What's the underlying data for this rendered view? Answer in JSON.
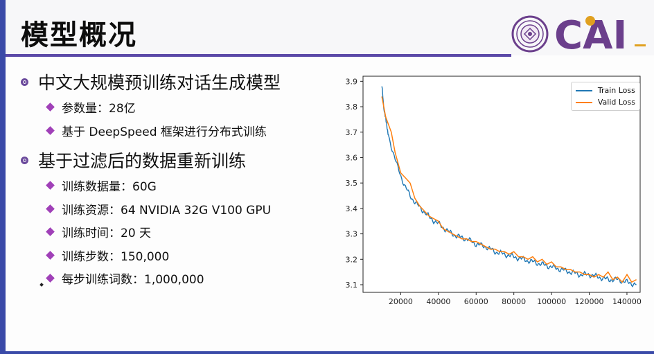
{
  "slide": {
    "title": "模型概况",
    "bullets": [
      {
        "text": "中文大规模预训练对话生成模型",
        "sub": [
          "参数量：28亿",
          "基于 DeepSpeed 框架进行分布式训练"
        ]
      },
      {
        "text": "基于过滤后的数据重新训练",
        "sub": [
          "训练数据量：60G",
          "训练资源：64 NVIDIA 32G V100 GPU",
          "训练时间：20 天",
          "训练步数：150,000",
          "每步训练词数：1,000,000"
        ]
      }
    ],
    "logo_text": "CAI"
  },
  "colors": {
    "accent": "#5b49a8",
    "bullet_diamond": "#a040b8",
    "train": "#1f77b4",
    "valid": "#ff7f0e"
  },
  "chart_data": {
    "type": "line",
    "title": "",
    "xlabel": "",
    "ylabel": "",
    "xlim": [
      0,
      147000
    ],
    "ylim": [
      3.07,
      3.92
    ],
    "x_ticks": [
      20000,
      40000,
      60000,
      80000,
      100000,
      120000,
      140000
    ],
    "x_tick_labels": [
      "20000",
      "40000",
      "60000",
      "80000",
      "100000",
      "120000",
      "140000"
    ],
    "y_ticks": [
      3.1,
      3.2,
      3.3,
      3.4,
      3.5,
      3.6,
      3.7,
      3.8,
      3.9
    ],
    "y_tick_labels": [
      "3.1",
      "3.2",
      "3.3",
      "3.4",
      "3.5",
      "3.6",
      "3.7",
      "3.8",
      "3.9"
    ],
    "legend_position": "top-right",
    "series": [
      {
        "name": "Train Loss",
        "color": "#1f77b4",
        "x": [
          10000,
          11000,
          12000,
          13000,
          14000,
          16000,
          18000,
          20000,
          22000,
          25000,
          28000,
          32000,
          36000,
          40000,
          45000,
          50000,
          55000,
          60000,
          65000,
          70000,
          75000,
          80000,
          85000,
          90000,
          95000,
          100000,
          105000,
          110000,
          115000,
          120000,
          125000,
          130000,
          135000,
          140000,
          145000
        ],
        "y": [
          3.88,
          3.8,
          3.75,
          3.71,
          3.67,
          3.62,
          3.57,
          3.53,
          3.49,
          3.45,
          3.42,
          3.39,
          3.36,
          3.34,
          3.31,
          3.29,
          3.28,
          3.26,
          3.25,
          3.23,
          3.22,
          3.21,
          3.2,
          3.19,
          3.18,
          3.17,
          3.16,
          3.15,
          3.14,
          3.14,
          3.13,
          3.12,
          3.12,
          3.11,
          3.1
        ]
      },
      {
        "name": "Valid Loss",
        "color": "#ff7f0e",
        "x": [
          10000,
          12000,
          15000,
          17000,
          20000,
          22500,
          25000,
          27500,
          30000,
          32500,
          35000,
          37500,
          40000,
          42500,
          45000,
          47500,
          50000,
          52500,
          55000,
          57500,
          60000,
          62500,
          65000,
          67500,
          70000,
          72500,
          75000,
          77500,
          80000,
          82500,
          85000,
          87500,
          90000,
          92500,
          95000,
          97500,
          100000,
          102500,
          105000,
          107500,
          110000,
          112500,
          115000,
          117500,
          120000,
          122500,
          125000,
          127500,
          130000,
          132500,
          135000,
          137500,
          140000,
          142500,
          145000
        ],
        "y": [
          3.84,
          3.76,
          3.7,
          3.62,
          3.54,
          3.52,
          3.5,
          3.44,
          3.41,
          3.39,
          3.37,
          3.36,
          3.35,
          3.32,
          3.31,
          3.3,
          3.29,
          3.28,
          3.28,
          3.27,
          3.27,
          3.26,
          3.25,
          3.24,
          3.24,
          3.23,
          3.23,
          3.22,
          3.23,
          3.21,
          3.21,
          3.2,
          3.21,
          3.19,
          3.2,
          3.18,
          3.19,
          3.17,
          3.17,
          3.16,
          3.16,
          3.15,
          3.15,
          3.14,
          3.14,
          3.13,
          3.14,
          3.13,
          3.15,
          3.12,
          3.13,
          3.11,
          3.14,
          3.11,
          3.12
        ]
      }
    ]
  }
}
